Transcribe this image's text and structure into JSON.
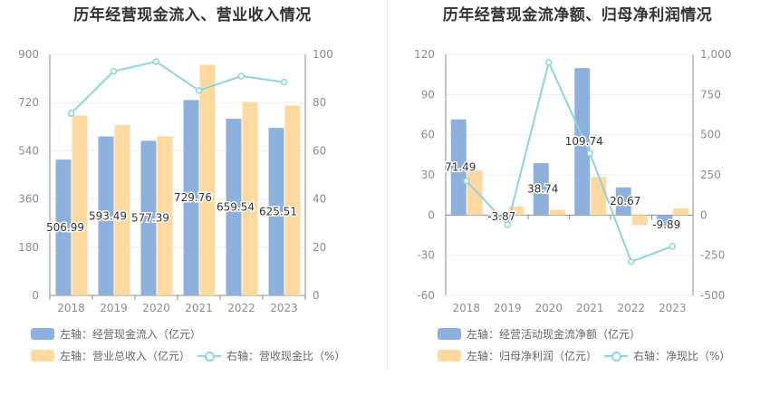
{
  "left": {
    "title": "历年经营现金流入、营业收入情况",
    "legend": {
      "bar1": "左轴：经营现金流入（亿元）",
      "bar2": "左轴：营业总收入（亿元）",
      "line": "右轴：营收现金比（%）"
    }
  },
  "right": {
    "title": "历年经营现金流净额、归母净利润情况",
    "legend": {
      "bar1": "左轴：经营活动现金流净额（亿元）",
      "bar2": "左轴：归母净利润（亿元）",
      "line": "右轴：净现比（%）"
    }
  },
  "colors": {
    "bar1": "#8eb0dc",
    "bar2": "#fed9a0",
    "line": "#8dd4dc",
    "axis": "#8c8c8c",
    "grid": "#e8ecf2"
  },
  "chart_data": [
    {
      "type": "bar",
      "title": "历年经营现金流入、营业收入情况",
      "categories": [
        "2018",
        "2019",
        "2020",
        "2021",
        "2022",
        "2023"
      ],
      "series": [
        {
          "name": "左轴：经营现金流入（亿元）",
          "axis": "left",
          "values": [
            506.99,
            593.49,
            577.39,
            729.76,
            659.54,
            625.51
          ],
          "labels": [
            "506.99",
            "593.49",
            "577.39",
            "729.76",
            "659.54",
            "625.51"
          ]
        },
        {
          "name": "左轴：营业总收入（亿元）",
          "axis": "left",
          "values": [
            672,
            636,
            594,
            861,
            722,
            709
          ]
        },
        {
          "name": "右轴：营收现金比（%）",
          "axis": "right",
          "type": "line",
          "values": [
            75.5,
            93,
            97,
            85,
            91,
            88.5
          ]
        }
      ],
      "left_axis": {
        "min": 0,
        "max": 900,
        "ticks": [
          0,
          180,
          360,
          540,
          720,
          900
        ],
        "tick_labels": [
          "0",
          "180",
          "360",
          "540",
          "720",
          "900"
        ]
      },
      "right_axis": {
        "min": 0,
        "max": 100,
        "ticks": [
          0,
          20,
          40,
          60,
          80,
          100
        ],
        "tick_labels": [
          "0",
          "20",
          "40",
          "60",
          "80",
          "100"
        ]
      },
      "grid": true,
      "legend_position": "bottom"
    },
    {
      "type": "bar",
      "title": "历年经营现金流净额、归母净利润情况",
      "categories": [
        "2018",
        "2019",
        "2020",
        "2021",
        "2022",
        "2023"
      ],
      "series": [
        {
          "name": "左轴：经营活动现金流净额（亿元）",
          "axis": "left",
          "values": [
            71.49,
            -3.87,
            38.74,
            109.74,
            20.67,
            -9.89
          ],
          "labels": [
            "71.49",
            "-3.87",
            "38.74",
            "109.74",
            "20.67",
            "-9.89"
          ]
        },
        {
          "name": "左轴：归母净利润（亿元）",
          "axis": "left",
          "values": [
            33.5,
            6.5,
            4,
            28.5,
            -7.5,
            5
          ]
        },
        {
          "name": "右轴：净现比（%）",
          "axis": "right",
          "type": "line",
          "values": [
            213,
            -60,
            950,
            385,
            -290,
            -195
          ]
        }
      ],
      "left_axis": {
        "min": -60,
        "max": 120,
        "ticks": [
          -60,
          -30,
          0,
          30,
          60,
          90,
          120
        ],
        "tick_labels": [
          "-60",
          "-30",
          "0",
          "30",
          "60",
          "90",
          "120"
        ]
      },
      "right_axis": {
        "min": -500,
        "max": 1000,
        "ticks": [
          -500,
          -250,
          0,
          250,
          500,
          750,
          1000
        ],
        "tick_labels": [
          "-500",
          "-250",
          "0",
          "250",
          "500",
          "750",
          "1,000"
        ]
      },
      "grid": true,
      "legend_position": "bottom"
    }
  ]
}
